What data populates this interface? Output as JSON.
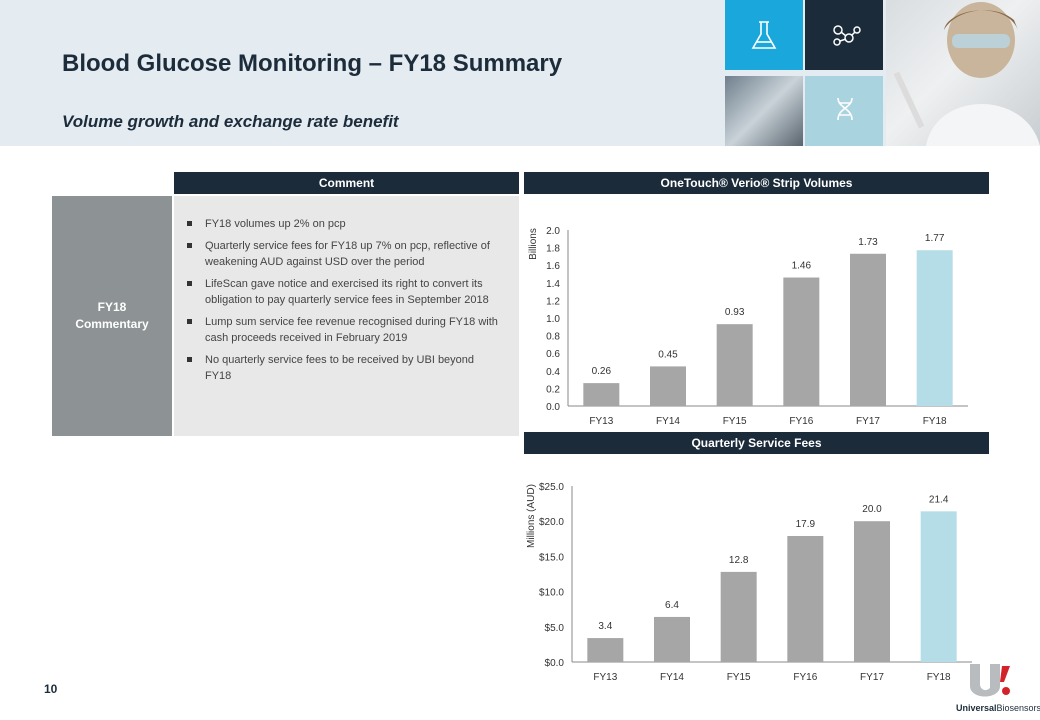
{
  "header": {
    "title": "Blood Glucose Monitoring – FY18 Summary",
    "subtitle": "Volume growth and exchange rate benefit"
  },
  "tiles": [
    {
      "icon": "flask-icon",
      "color": "#1aa7dc"
    },
    {
      "icon": "molecule-icon",
      "color": "#1b2b3a"
    },
    {
      "icon": "dna-icon",
      "color": "#a9d3df"
    }
  ],
  "comment_section": {
    "heading": "Comment",
    "row_label": "FY18\nCommentary",
    "bullets": [
      "FY18 volumes up 2% on pcp",
      "Quarterly service fees for FY18 up 7% on pcp, reflective of weakening AUD against USD over the period",
      "LifeScan gave notice and exercised its right to convert its obligation to pay quarterly service fees in September 2018",
      "Lump sum service fee revenue recognised during FY18 with cash proceeds received in February 2019",
      "No quarterly service fees to be received by UBI beyond FY18"
    ]
  },
  "chart_data": [
    {
      "type": "bar",
      "heading": "OneTouch® Verio® Strip Volumes",
      "ylabel": "Billions",
      "categories": [
        "FY13",
        "FY14",
        "FY15",
        "FY16",
        "FY17",
        "FY18"
      ],
      "values": [
        0.26,
        0.45,
        0.93,
        1.46,
        1.73,
        1.77
      ],
      "value_labels": [
        "0.26",
        "0.45",
        "0.93",
        "1.46",
        "1.73",
        "1.77"
      ],
      "ylim": [
        0,
        2.0
      ],
      "ticks": [
        "0.0",
        "0.2",
        "0.4",
        "0.6",
        "0.8",
        "1.0",
        "1.2",
        "1.4",
        "1.6",
        "1.8",
        "2.0"
      ],
      "bar_colors": [
        "#a6a6a6",
        "#a6a6a6",
        "#a6a6a6",
        "#a6a6a6",
        "#a6a6a6",
        "#b4dde7"
      ],
      "grid": false
    },
    {
      "type": "bar",
      "heading": "Quarterly Service Fees",
      "ylabel": "Millions (AUD)",
      "categories": [
        "FY13",
        "FY14",
        "FY15",
        "FY16",
        "FY17",
        "FY18"
      ],
      "values": [
        3.4,
        6.4,
        12.8,
        17.9,
        20.0,
        21.4
      ],
      "value_labels": [
        "3.4",
        "6.4",
        "12.8",
        "17.9",
        "20.0",
        "21.4"
      ],
      "ylim": [
        0,
        25.0
      ],
      "ticks": [
        "$0.0",
        "$5.0",
        "$10.0",
        "$15.0",
        "$20.0",
        "$25.0"
      ],
      "bar_colors": [
        "#a6a6a6",
        "#a6a6a6",
        "#a6a6a6",
        "#a6a6a6",
        "#a6a6a6",
        "#b4dde7"
      ],
      "grid": false
    }
  ],
  "footer": {
    "page_number": "10",
    "logo_word_bold": "Universal",
    "logo_word": "Biosensors"
  }
}
